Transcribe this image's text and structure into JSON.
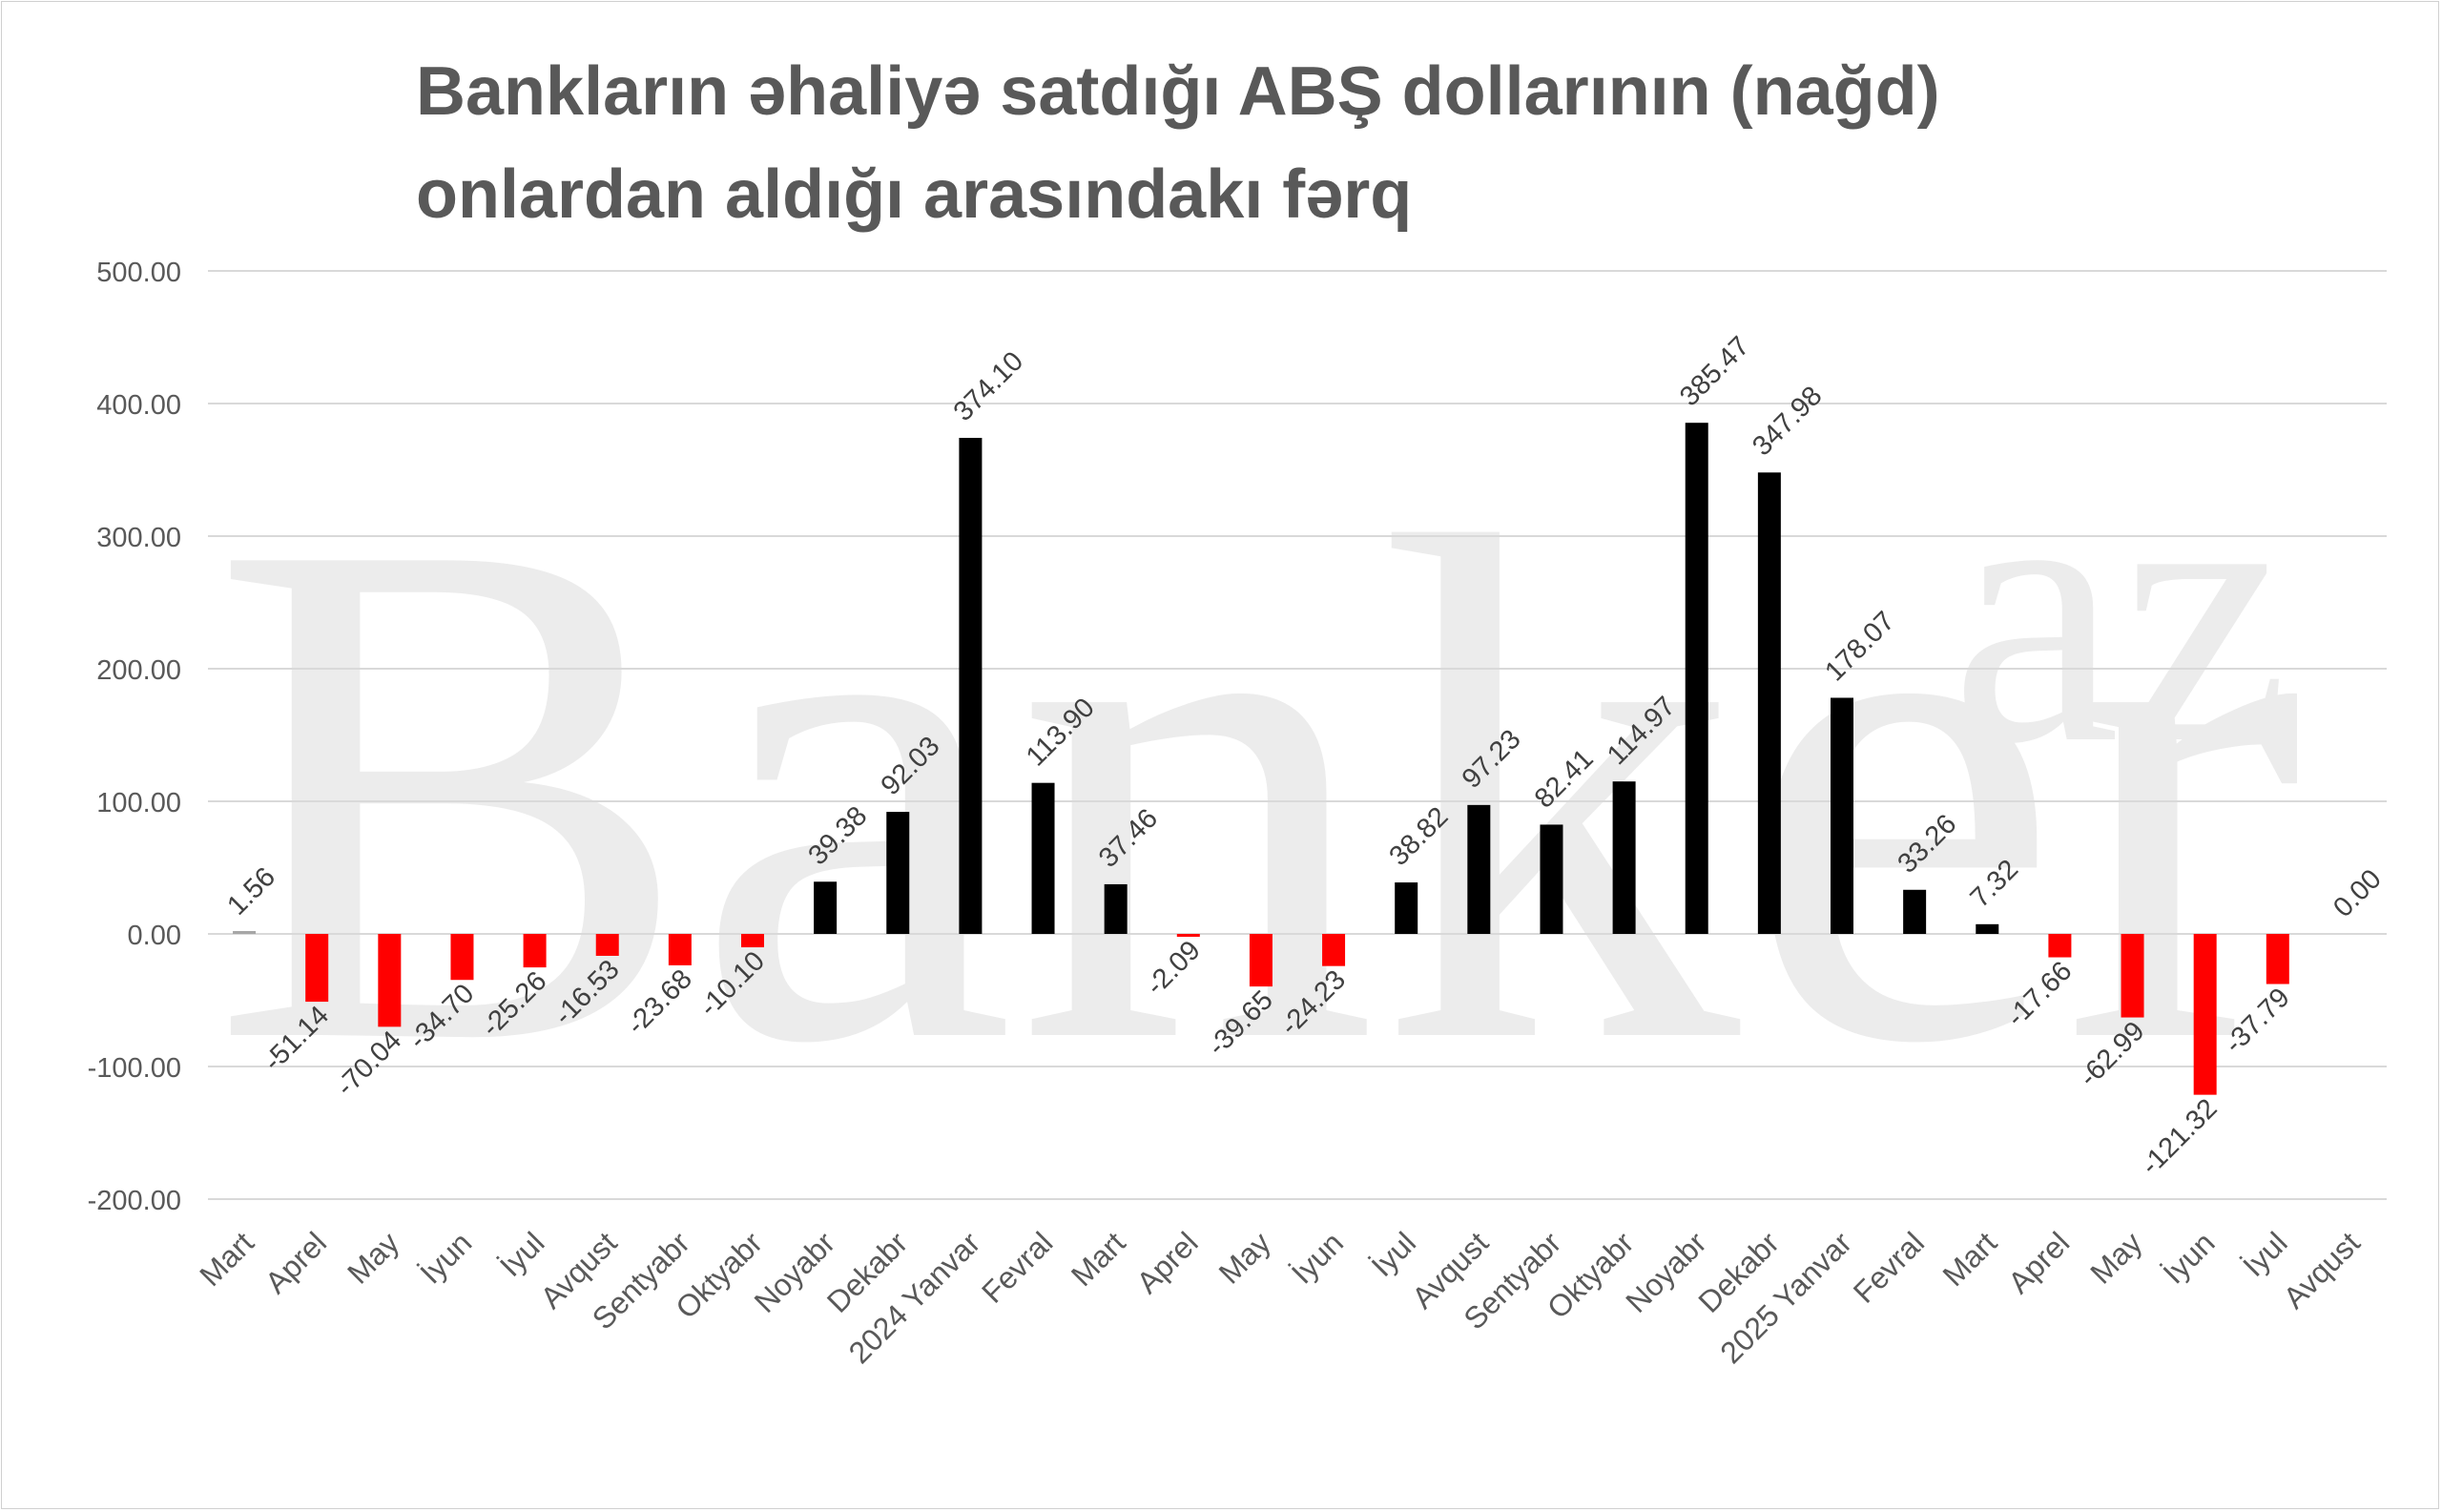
{
  "chart_data": {
    "type": "bar",
    "title_lines": [
      "Bankların əhaliyə satdığı ABŞ dollarının (nağd)",
      "onlardan aldığı arasındakı fərq"
    ],
    "watermark": "Banker.az",
    "categories": [
      "Mart",
      "Aprel",
      "May",
      "İyun",
      "İyul",
      "Avqust",
      "Sentyabr",
      "Oktyabr",
      "Noyabr",
      "Dekabr",
      "2024 Yanvar",
      "Fevral",
      "Mart",
      "Aprel",
      "May",
      "İyun",
      "İyul",
      "Avqust",
      "Sentyabr",
      "Oktyabr",
      "Noyabr",
      "Dekabr",
      "2025 Yanvar",
      "Fevral",
      "Mart",
      "Aprel",
      "May",
      "İyun",
      "İyul",
      "Avqust"
    ],
    "values": [
      1.56,
      -51.14,
      -70.04,
      -34.7,
      -25.26,
      -16.53,
      -23.68,
      -10.1,
      39.38,
      92.03,
      374.1,
      113.9,
      37.46,
      -2.09,
      -39.65,
      -24.23,
      38.82,
      97.23,
      82.41,
      114.97,
      385.47,
      347.98,
      178.07,
      33.26,
      7.32,
      -17.66,
      -62.99,
      -121.32,
      -37.79,
      0.0
    ],
    "data_labels": [
      "1.56",
      "-51.14",
      "-70.04",
      "-34.70",
      "-25.26",
      "-16.53",
      "-23.68",
      "-10.10",
      "39.38",
      "92.03",
      "374.10",
      "113.90",
      "37.46",
      "-2.09",
      "-39.65",
      "-24.23",
      "38.82",
      "97.23",
      "82.41",
      "114.97",
      "385.47",
      "347.98",
      "178.07",
      "33.26",
      "7.32",
      "-17.66",
      "-62.99",
      "-121.32",
      "-37.79",
      "0.00"
    ],
    "y_ticks": [
      "500.00",
      "400.00",
      "300.00",
      "200.00",
      "100.00",
      "0.00",
      "-100.00",
      "-200.00"
    ],
    "y_tick_values": [
      500,
      400,
      300,
      200,
      100,
      0,
      -100,
      -200
    ],
    "ylim": [
      -200,
      500
    ],
    "grid": true,
    "legend": "none",
    "colors": {
      "positive": "#000000",
      "negative": "#ff0000",
      "first": "#a6a6a6",
      "grid": "#d9d9d9",
      "text": "#595959",
      "watermark": "#ececec"
    }
  }
}
